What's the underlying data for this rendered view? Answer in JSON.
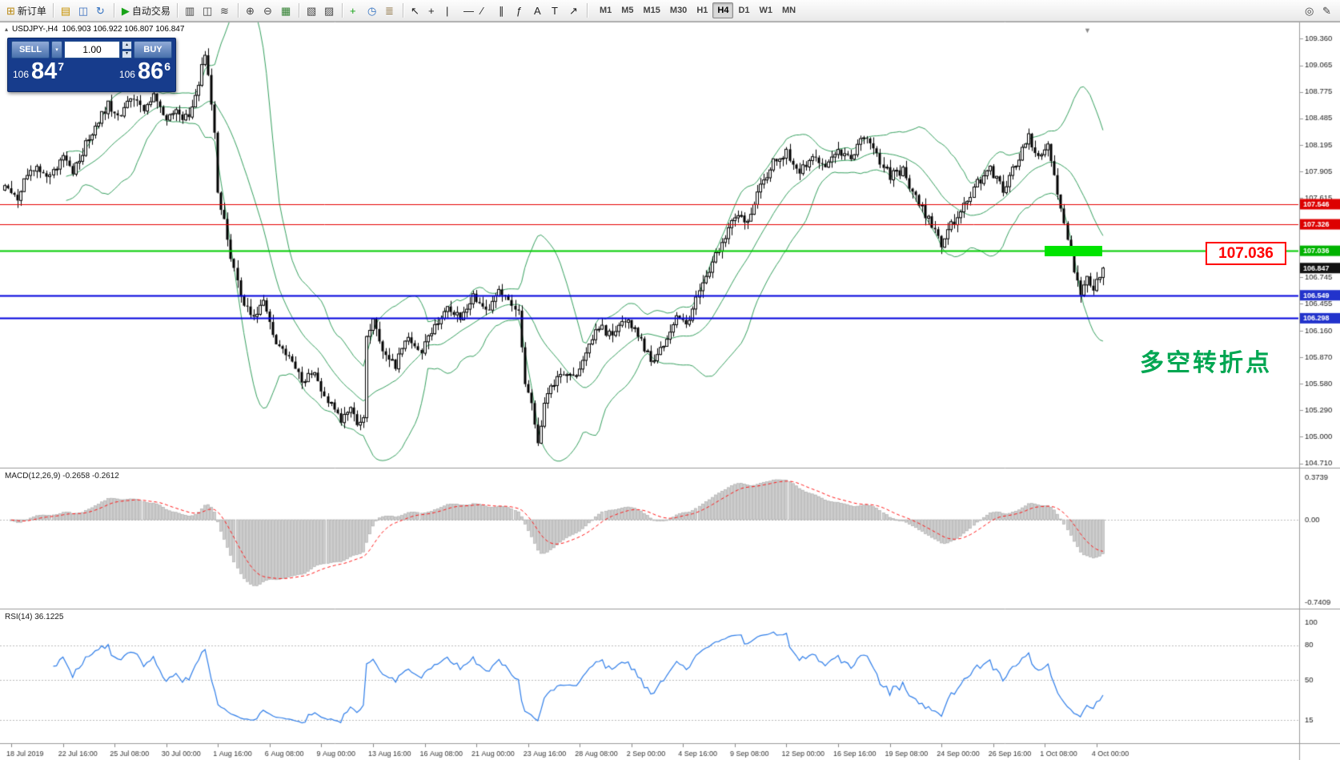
{
  "toolbar": {
    "groups": [
      {
        "items": [
          {
            "name": "new-order-icon",
            "glyph": "⊞",
            "color": "#b8860b",
            "label": "新订单"
          }
        ]
      },
      {
        "items": [
          {
            "name": "charts-layout-icon",
            "glyph": "▤",
            "color": "#c79200"
          },
          {
            "name": "profile-icon",
            "glyph": "◫",
            "color": "#3a6fbf"
          },
          {
            "name": "refresh-icon",
            "glyph": "↻",
            "color": "#2f6fc0"
          }
        ]
      },
      {
        "items": [
          {
            "name": "autotrading-icon",
            "glyph": "▶",
            "color": "#18a318",
            "label": "自动交易"
          }
        ]
      },
      {
        "items": [
          {
            "name": "bars-chart-icon",
            "glyph": "▥",
            "color": "#444444"
          },
          {
            "name": "candlestick-chart-icon",
            "glyph": "◫",
            "color": "#444444"
          },
          {
            "name": "line-chart-icon",
            "glyph": "≋",
            "color": "#444444"
          }
        ]
      },
      {
        "items": [
          {
            "name": "zoom-in-icon",
            "glyph": "⊕",
            "color": "#444444"
          },
          {
            "name": "zoom-out-icon",
            "glyph": "⊖",
            "color": "#444444"
          },
          {
            "name": "tile-windows-icon",
            "glyph": "▦",
            "color": "#2f7f2f"
          }
        ]
      },
      {
        "items": [
          {
            "name": "arrange-windows-icon",
            "glyph": "▧",
            "color": "#444444"
          },
          {
            "name": "cascade-windows-icon",
            "glyph": "▨",
            "color": "#444444"
          }
        ]
      },
      {
        "items": [
          {
            "name": "new-chart-icon",
            "glyph": "+",
            "color": "#18a318"
          },
          {
            "name": "period-icon",
            "glyph": "◷",
            "color": "#2f6fc0"
          },
          {
            "name": "indicators-icon",
            "glyph": "≣",
            "color": "#8a6d3b"
          }
        ]
      },
      {
        "items": [
          {
            "name": "cursor-icon",
            "glyph": "↖",
            "color": "#222222"
          },
          {
            "name": "crosshair-icon",
            "glyph": "+",
            "color": "#222222"
          },
          {
            "name": "vertical-line-icon",
            "glyph": "|",
            "color": "#222222"
          },
          {
            "name": "horizontal-line-icon",
            "glyph": "—",
            "color": "#222222"
          },
          {
            "name": "trendline-icon",
            "glyph": "∕",
            "color": "#222222"
          },
          {
            "name": "channel-icon",
            "glyph": "∥",
            "color": "#222222"
          },
          {
            "name": "fibonacci-icon",
            "glyph": "ƒ",
            "color": "#222222"
          },
          {
            "name": "text-icon",
            "glyph": "A",
            "color": "#222222"
          },
          {
            "name": "label-icon",
            "glyph": "T",
            "color": "#222222"
          },
          {
            "name": "shapes-icon",
            "glyph": "↗",
            "color": "#222222"
          }
        ]
      }
    ],
    "timeframes": [
      "M1",
      "M5",
      "M15",
      "M30",
      "H1",
      "H4",
      "D1",
      "W1",
      "MN"
    ],
    "active_timeframe": "H4",
    "right_items": [
      {
        "name": "search-icon",
        "glyph": "◎",
        "color": "#444444"
      },
      {
        "name": "edit-icon",
        "glyph": "✎",
        "color": "#444444"
      }
    ]
  },
  "trade_panel": {
    "sell_label": "SELL",
    "buy_label": "BUY",
    "volume": "1.00",
    "spinner_up": "▴",
    "spinner_down": "▾",
    "sell_price": {
      "prefix": "106",
      "big": "84",
      "sup": "7"
    },
    "buy_price": {
      "prefix": "106",
      "big": "86",
      "sup": "6"
    }
  },
  "chart_header": {
    "collapse_glyph": "▴",
    "symbol_period": "USDJPY-,H4",
    "ohlc": "106.903 106.922 106.807 106.847"
  },
  "indicators": {
    "macd_label": "MACD(12,26,9) -0.2658 -0.2612",
    "rsi_label": "RSI(14) 36.1225"
  },
  "annotations": {
    "price_box": "107.036",
    "pivot_text": "多空转折点",
    "pivot_color": "#00a651"
  },
  "chart_data": {
    "type": "candlestick",
    "symbol": "USDJPY",
    "timeframe": "H4",
    "current_price": 106.847,
    "price_axis_ticks": [
      "109.360",
      "109.065",
      "108.775",
      "108.485",
      "108.195",
      "107.905",
      "107.615",
      "107.325",
      "107.036",
      "106.745",
      "106.455",
      "106.160",
      "105.870",
      "105.580",
      "105.290",
      "105.000",
      "104.710"
    ],
    "axis_markers": [
      {
        "price": 107.546,
        "text": "107.546",
        "color": "#dd0000"
      },
      {
        "price": 107.326,
        "text": "107.326",
        "color": "#dd0000"
      },
      {
        "price": 107.036,
        "text": "107.036",
        "color": "#00b300"
      },
      {
        "price": 106.847,
        "text": "106.847",
        "color": "#111111"
      },
      {
        "price": 106.549,
        "text": "106.549",
        "color": "#2233cc"
      },
      {
        "price": 106.298,
        "text": "106.298",
        "color": "#2233cc"
      }
    ],
    "hlines": [
      {
        "price": 107.546,
        "color": "#e60000",
        "width": 1
      },
      {
        "price": 107.326,
        "color": "#e60000",
        "width": 1
      },
      {
        "price": 107.036,
        "color": "#00cc00",
        "width": 2
      },
      {
        "price": 106.549,
        "color": "#0000dd",
        "width": 2
      },
      {
        "price": 106.298,
        "color": "#0000dd",
        "width": 2
      }
    ],
    "bollinger": {
      "period": 20,
      "deviation": 2,
      "color": "#36a05f"
    },
    "price_keypoints": [
      [
        0,
        107.75
      ],
      [
        4,
        107.62
      ],
      [
        8,
        107.95
      ],
      [
        14,
        107.85
      ],
      [
        18,
        108.1
      ],
      [
        21,
        107.9
      ],
      [
        25,
        108.2
      ],
      [
        29,
        108.45
      ],
      [
        32,
        108.65
      ],
      [
        35,
        108.5
      ],
      [
        39,
        108.72
      ],
      [
        43,
        108.6
      ],
      [
        46,
        108.72
      ],
      [
        50,
        108.45
      ],
      [
        53,
        108.58
      ],
      [
        57,
        108.45
      ],
      [
        60,
        108.85
      ],
      [
        62,
        109.22
      ],
      [
        63,
        108.95
      ],
      [
        65,
        108.35
      ],
      [
        66,
        107.7
      ],
      [
        68,
        107.35
      ],
      [
        70,
        106.95
      ],
      [
        73,
        106.55
      ],
      [
        76,
        106.3
      ],
      [
        80,
        106.45
      ],
      [
        84,
        106.05
      ],
      [
        88,
        105.9
      ],
      [
        92,
        105.6
      ],
      [
        96,
        105.7
      ],
      [
        100,
        105.38
      ],
      [
        104,
        105.2
      ],
      [
        107,
        105.35
      ],
      [
        109,
        105.08
      ],
      [
        111,
        105.25
      ],
      [
        112,
        106.05
      ],
      [
        114,
        106.3
      ],
      [
        117,
        105.95
      ],
      [
        121,
        105.78
      ],
      [
        125,
        106.1
      ],
      [
        129,
        105.92
      ],
      [
        133,
        106.22
      ],
      [
        137,
        106.42
      ],
      [
        141,
        106.28
      ],
      [
        145,
        106.52
      ],
      [
        149,
        106.38
      ],
      [
        153,
        106.6
      ],
      [
        157,
        106.48
      ],
      [
        159,
        106.38
      ],
      [
        161,
        105.6
      ],
      [
        163,
        105.38
      ],
      [
        165,
        104.98
      ],
      [
        168,
        105.5
      ],
      [
        172,
        105.72
      ],
      [
        176,
        105.62
      ],
      [
        180,
        105.95
      ],
      [
        184,
        106.22
      ],
      [
        188,
        106.08
      ],
      [
        192,
        106.28
      ],
      [
        195,
        106.18
      ],
      [
        198,
        105.95
      ],
      [
        201,
        105.82
      ],
      [
        204,
        106.0
      ],
      [
        208,
        106.32
      ],
      [
        211,
        106.2
      ],
      [
        214,
        106.55
      ],
      [
        218,
        106.85
      ],
      [
        222,
        107.15
      ],
      [
        226,
        107.42
      ],
      [
        230,
        107.38
      ],
      [
        234,
        107.75
      ],
      [
        238,
        108.0
      ],
      [
        242,
        108.12
      ],
      [
        246,
        107.9
      ],
      [
        250,
        108.08
      ],
      [
        254,
        107.98
      ],
      [
        258,
        108.12
      ],
      [
        262,
        108.02
      ],
      [
        266,
        108.32
      ],
      [
        270,
        108.08
      ],
      [
        274,
        107.85
      ],
      [
        278,
        107.92
      ],
      [
        282,
        107.6
      ],
      [
        286,
        107.38
      ],
      [
        290,
        107.08
      ],
      [
        293,
        107.32
      ],
      [
        297,
        107.52
      ],
      [
        301,
        107.78
      ],
      [
        305,
        107.92
      ],
      [
        309,
        107.72
      ],
      [
        313,
        107.98
      ],
      [
        317,
        108.28
      ],
      [
        320,
        108.08
      ],
      [
        323,
        108.22
      ],
      [
        325,
        107.88
      ],
      [
        327,
        107.5
      ],
      [
        329,
        107.15
      ],
      [
        331,
        106.82
      ],
      [
        333,
        106.55
      ],
      [
        335,
        106.72
      ],
      [
        337,
        106.62
      ],
      [
        340,
        106.85
      ]
    ],
    "time_labels": [
      "18 Jul 2019",
      "22 Jul 16:00",
      "25 Jul 08:00",
      "30 Jul 00:00",
      "1 Aug 16:00",
      "6 Aug 08:00",
      "9 Aug 00:00",
      "13 Aug 16:00",
      "16 Aug 08:00",
      "21 Aug 00:00",
      "23 Aug 16:00",
      "28 Aug 08:00",
      "2 Sep 00:00",
      "4 Sep 16:00",
      "9 Sep 08:00",
      "12 Sep 00:00",
      "16 Sep 16:00",
      "19 Sep 08:00",
      "24 Sep 00:00",
      "26 Sep 16:00",
      "1 Oct 08:00",
      "4 Oct 00:00"
    ],
    "macd": {
      "params": "12,26,9",
      "current_values": [
        "-0.2658",
        "-0.2612"
      ],
      "axis": [
        {
          "v": 0.3739,
          "t": "0.3739"
        },
        {
          "v": 0,
          "t": "0.00"
        },
        {
          "v": -0.7409,
          "t": "-0.7409"
        }
      ],
      "histogram_color": "#cdcdcd",
      "signal_color": "#ff1a1a"
    },
    "rsi": {
      "period": 14,
      "value": 36.1225,
      "color": "#2e7de9",
      "levels": [
        80,
        50,
        15
      ],
      "axis": [
        {
          "v": 100,
          "t": "100"
        },
        {
          "v": 80,
          "t": "80"
        },
        {
          "v": 50,
          "t": "50"
        },
        {
          "v": 15,
          "t": "15"
        }
      ]
    }
  }
}
